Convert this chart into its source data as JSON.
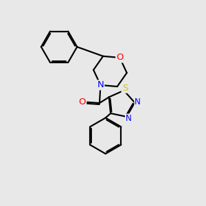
{
  "bg_color": "#e8e8e8",
  "bond_color": "#000000",
  "bond_width": 1.6,
  "atom_colors": {
    "O": "#ff0000",
    "N": "#0000ff",
    "S": "#cccc00",
    "C": "#000000"
  },
  "font_size": 8.5,
  "figsize": [
    3.0,
    3.0
  ],
  "dpi": 100,
  "xlim": [
    0,
    10
  ],
  "ylim": [
    0,
    10
  ]
}
